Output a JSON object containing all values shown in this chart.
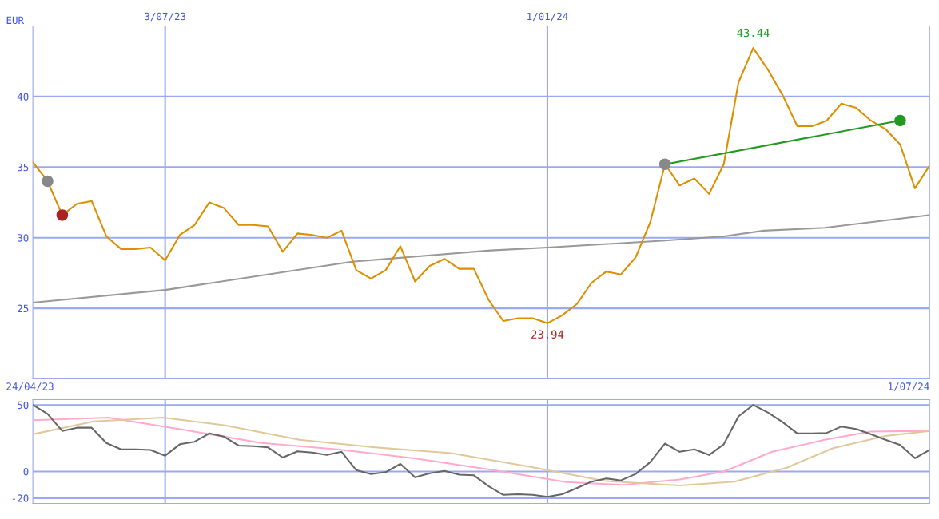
{
  "chart_data": [
    {
      "type": "line",
      "ylabel": "EUR",
      "xlim": [
        "2023-05-01",
        "2024-07-01"
      ],
      "ylim": [
        20,
        45
      ],
      "yticks": [
        25,
        30,
        35,
        40
      ],
      "xticks": [
        {
          "value": "2023-07-03",
          "label": "3/07/23"
        },
        {
          "value": "2024-01-01",
          "label": "1/01/24"
        }
      ],
      "grid": true,
      "legend": false,
      "annotations": [
        {
          "text": "43.44",
          "x": "2024-04-08",
          "y": 43.44
        },
        {
          "text": "23.94",
          "x": "2024-01-01",
          "y": 23.94
        },
        "24/04/23",
        "1/07/24"
      ],
      "series": [
        {
          "color": "#999999",
          "x": [
            "2023-05-01",
            "2023-07-03",
            "2023-09-30",
            "2023-12-05",
            "2024-01-01",
            "2024-02-26",
            "2024-03-25",
            "2024-04-13",
            "2024-05-12",
            "2024-07-01"
          ],
          "values": [
            25.4,
            26.3,
            28.3,
            29.1,
            29.3,
            29.8,
            30.1,
            30.5,
            30.7,
            31.6
          ]
        },
        {
          "color": "#dd8f00",
          "x": [
            "2023-05-01",
            "2023-05-08",
            "2023-05-15",
            "2023-05-22",
            "2023-05-29",
            "2023-06-05",
            "2023-06-12",
            "2023-06-19",
            "2023-06-26",
            "2023-07-03",
            "2023-07-10",
            "2023-07-17",
            "2023-07-24",
            "2023-07-31",
            "2023-08-07",
            "2023-08-14",
            "2023-08-21",
            "2023-08-28",
            "2023-09-04",
            "2023-09-11",
            "2023-09-18",
            "2023-09-25",
            "2023-10-02",
            "2023-10-09",
            "2023-10-16",
            "2023-10-23",
            "2023-10-30",
            "2023-11-06",
            "2023-11-13",
            "2023-11-20",
            "2023-11-27",
            "2023-12-04",
            "2023-12-11",
            "2023-12-18",
            "2023-12-25",
            "2024-01-01",
            "2024-01-08",
            "2024-01-15",
            "2024-01-22",
            "2024-01-29",
            "2024-02-05",
            "2024-02-12",
            "2024-02-19",
            "2024-02-26",
            "2024-03-04",
            "2024-03-11",
            "2024-03-18",
            "2024-03-25",
            "2024-04-01",
            "2024-04-08",
            "2024-04-15",
            "2024-04-22",
            "2024-04-29",
            "2024-05-06",
            "2024-05-13",
            "2024-05-20",
            "2024-05-27",
            "2024-06-03",
            "2024-06-10",
            "2024-06-17",
            "2024-06-24",
            "2024-07-01"
          ],
          "values": [
            35.35,
            34.0,
            31.6,
            32.4,
            32.6,
            30.1,
            29.2,
            29.2,
            29.3,
            28.4,
            30.2,
            30.9,
            32.5,
            32.1,
            30.9,
            30.9,
            30.8,
            29.0,
            30.3,
            30.2,
            30.0,
            30.5,
            27.7,
            27.1,
            27.7,
            29.4,
            26.9,
            28.0,
            28.5,
            27.8,
            27.8,
            25.6,
            24.1,
            24.3,
            24.3,
            23.94,
            24.5,
            25.3,
            26.8,
            27.6,
            27.4,
            28.6,
            31.1,
            35.2,
            33.7,
            34.2,
            33.1,
            35.2,
            41.0,
            43.44,
            41.9,
            40.1,
            37.9,
            37.9,
            38.3,
            39.5,
            39.2,
            38.3,
            37.7,
            36.6,
            33.5,
            35.1
          ]
        },
        {
          "color": "#229922",
          "x": [
            "2024-02-26",
            "2024-06-17"
          ],
          "values": [
            35.2,
            38.3
          ]
        },
        {
          "type": "scatter",
          "marker": "circle",
          "x": [
            "2023-05-08",
            "2023-05-15",
            "2024-02-26",
            "2024-06-17"
          ],
          "values": [
            34.0,
            31.6,
            35.2,
            38.3
          ],
          "colors": [
            "#888888",
            "#aa2222",
            "#888888",
            "#229922"
          ]
        }
      ]
    },
    {
      "type": "line",
      "xlim": [
        "2023-05-01",
        "2024-07-01"
      ],
      "ylim": [
        -24,
        54
      ],
      "yticks": [
        50,
        0,
        {
          "value": -20,
          "label": "-20"
        }
      ],
      "xticks": [
        {
          "value": "2023-07-03",
          "label": null
        },
        {
          "value": "2024-01-01",
          "label": null
        }
      ],
      "tick_labels": "y",
      "grid": true,
      "legend": false,
      "series": [
        {
          "color": "#ffaacc",
          "x": [
            "2023-05-01",
            "2023-06-06",
            "2023-07-13",
            "2023-08-18",
            "2023-09-23",
            "2023-10-29",
            "2023-12-05",
            "2024-01-10",
            "2024-02-06",
            "2024-03-04",
            "2024-03-25",
            "2024-04-17",
            "2024-05-12",
            "2024-06-03",
            "2024-07-01"
          ],
          "values": [
            38.6,
            40.5,
            31.0,
            21.4,
            16.7,
            10.0,
            1.4,
            -8.0,
            -10.0,
            -6.0,
            0.0,
            14.8,
            23.8,
            30.0,
            30.5
          ]
        },
        {
          "color": "#e0c89c",
          "x": [
            "2023-05-01",
            "2023-05-30",
            "2023-07-02",
            "2023-07-31",
            "2023-09-05",
            "2023-10-11",
            "2023-11-16",
            "2023-12-23",
            "2024-01-28",
            "2024-03-04",
            "2024-03-30",
            "2024-04-24",
            "2024-05-16",
            "2024-06-10",
            "2024-07-01"
          ],
          "values": [
            28.0,
            37.6,
            40.5,
            34.8,
            23.8,
            18.1,
            13.8,
            3.8,
            -7.1,
            -10.5,
            -7.6,
            2.9,
            17.6,
            26.7,
            30.5
          ]
        },
        {
          "color": "#666666",
          "x": [
            "2023-05-01",
            "2023-05-08",
            "2023-05-15",
            "2023-05-22",
            "2023-05-29",
            "2023-06-05",
            "2023-06-12",
            "2023-06-19",
            "2023-06-26",
            "2023-07-03",
            "2023-07-10",
            "2023-07-17",
            "2023-07-24",
            "2023-07-31",
            "2023-08-07",
            "2023-08-14",
            "2023-08-21",
            "2023-08-28",
            "2023-09-04",
            "2023-09-11",
            "2023-09-18",
            "2023-09-25",
            "2023-10-02",
            "2023-10-09",
            "2023-10-16",
            "2023-10-23",
            "2023-10-30",
            "2023-11-06",
            "2023-11-13",
            "2023-11-20",
            "2023-11-27",
            "2023-12-04",
            "2023-12-11",
            "2023-12-18",
            "2023-12-25",
            "2024-01-01",
            "2024-01-08",
            "2024-01-15",
            "2024-01-22",
            "2024-01-29",
            "2024-02-05",
            "2024-02-12",
            "2024-02-19",
            "2024-02-26",
            "2024-03-04",
            "2024-03-11",
            "2024-03-18",
            "2024-03-25",
            "2024-04-01",
            "2024-04-08",
            "2024-04-15",
            "2024-04-22",
            "2024-04-29",
            "2024-05-06",
            "2024-05-13",
            "2024-05-20",
            "2024-05-27",
            "2024-06-03",
            "2024-06-10",
            "2024-06-17",
            "2024-06-24",
            "2024-07-01"
          ],
          "values": [
            50,
            43.3,
            30.5,
            32.9,
            32.9,
            21.4,
            16.7,
            16.7,
            16.2,
            11.9,
            20.5,
            22.4,
            28.6,
            26.2,
            19.5,
            19.0,
            18.1,
            10.5,
            15.2,
            14.3,
            12.4,
            14.8,
            1.0,
            -1.9,
            -0.5,
            5.7,
            -4.3,
            -1.4,
            0.5,
            -2.4,
            -2.9,
            -11.0,
            -17.6,
            -17.1,
            -17.6,
            -19.0,
            -17.1,
            -12.4,
            -7.6,
            -5.2,
            -6.7,
            -1.9,
            7.1,
            21.0,
            14.8,
            16.7,
            12.4,
            20.5,
            41.4,
            50.0,
            44.3,
            37.1,
            28.6,
            28.6,
            29.0,
            33.8,
            31.9,
            28.1,
            23.8,
            20.0,
            10.0,
            16.2
          ]
        }
      ]
    }
  ]
}
